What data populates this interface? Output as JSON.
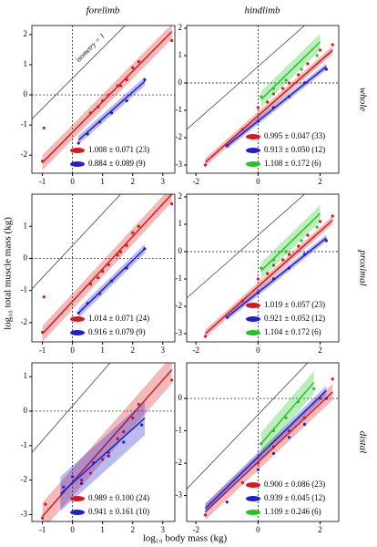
{
  "column_titles": [
    "forelimb",
    "hindlimb"
  ],
  "row_titles": [
    "whole",
    "proximal",
    "distal"
  ],
  "x_label": "log₁₀ body mass (kg)",
  "y_label": "log₁₀ total muscle mass (kg)",
  "isometry_label": "isometry = 1",
  "chart_data": [
    {
      "type": "scatter",
      "xlim": [
        -1.35,
        3.4
      ],
      "ylim": [
        -2.6,
        2.3
      ],
      "xticks": [
        -1,
        0,
        1,
        2,
        3
      ],
      "yticks": [
        -2,
        -1,
        0,
        1,
        2
      ],
      "isometry": {
        "x": [
          -1.35,
          1.75
        ],
        "y": [
          -0.8,
          2.3
        ]
      },
      "series": [
        {
          "name": "1.008 ± 0.071 (23)",
          "color": "#d7191c",
          "x": [
            -1,
            -0.95,
            0.6,
            0.85,
            1.0,
            1.2,
            1.5,
            1.6,
            1.8,
            2.0,
            2.2,
            3.3
          ],
          "values": [
            -2.2,
            -1.1,
            -0.6,
            -0.4,
            -0.2,
            0.0,
            0.3,
            0.3,
            0.5,
            0.9,
            1.1,
            1.8
          ],
          "fit_x": [
            -1,
            3.3
          ],
          "fit_y": [
            -2.25,
            2.1
          ],
          "ci": 0.25
        },
        {
          "name": "0.884 ± 0.089 (9)",
          "color": "#1f1fd0",
          "x": [
            0.2,
            0.5,
            0.9,
            1.3,
            1.8,
            2.4
          ],
          "values": [
            -1.6,
            -1.3,
            -0.9,
            -0.6,
            -0.2,
            0.5
          ],
          "fit_x": [
            0.2,
            2.4
          ],
          "fit_y": [
            -1.5,
            0.45
          ],
          "ci": 0.15
        }
      ]
    },
    {
      "type": "scatter",
      "xlim": [
        -2.3,
        2.6
      ],
      "ylim": [
        -3.3,
        2.1
      ],
      "xticks": [
        -2,
        0,
        2
      ],
      "yticks": [
        -3,
        -2,
        -1,
        0,
        1,
        2
      ],
      "isometry": {
        "x": [
          -2.3,
          1.5
        ],
        "y": [
          -1.7,
          2.1
        ]
      },
      "series": [
        {
          "name": "0.995 ± 0.047 (33)",
          "color": "#d7191c",
          "x": [
            -1.7,
            -0.5,
            0,
            0.3,
            0.5,
            0.8,
            1.0,
            1.3,
            1.6,
            2.0,
            2.4
          ],
          "values": [
            -3.0,
            -1.7,
            -0.9,
            -0.7,
            -0.4,
            -0.2,
            0.0,
            0.3,
            0.7,
            1.2,
            1.4
          ],
          "fit_x": [
            -1.7,
            2.4
          ],
          "fit_y": [
            -2.9,
            1.2
          ],
          "ci": 0.15
        },
        {
          "name": "0.913 ± 0.050 (12)",
          "color": "#1f1fd0",
          "x": [
            -1,
            0,
            0.5,
            1.0,
            1.5,
            2.2
          ],
          "values": [
            -2.3,
            -1.4,
            -0.9,
            -0.5,
            0,
            0.5
          ],
          "fit_x": [
            -1,
            2.2
          ],
          "fit_y": [
            -2.3,
            0.6
          ],
          "ci": 0.12
        },
        {
          "name": "1.108 ± 0.172 (6)",
          "color": "#22c422",
          "x": [
            0.1,
            0.5,
            0.9,
            1.4,
            1.9
          ],
          "values": [
            -0.5,
            -0.2,
            0.1,
            0.5,
            1.0
          ],
          "fit_x": [
            0.1,
            2
          ],
          "fit_y": [
            -0.6,
            1.5
          ],
          "ci": 0.3
        }
      ]
    },
    {
      "type": "scatter",
      "xlim": [
        -1.35,
        3.4
      ],
      "ylim": [
        -2.6,
        2.0
      ],
      "xticks": [
        -1,
        0,
        1,
        2,
        3
      ],
      "yticks": [
        -2,
        -1,
        0,
        1
      ],
      "isometry": {
        "x": [
          -1.35,
          1.6
        ],
        "y": [
          -0.95,
          2.0
        ]
      },
      "series": [
        {
          "name": "1.014 ± 0.071 (24)",
          "color": "#d7191c",
          "x": [
            -1,
            -0.95,
            0.6,
            0.85,
            1.0,
            1.2,
            1.5,
            1.6,
            1.8,
            2.0,
            2.2,
            3.3
          ],
          "values": [
            -2.3,
            -1.2,
            -0.8,
            -0.6,
            -0.4,
            -0.2,
            0.1,
            0.2,
            0.4,
            0.8,
            1.0,
            1.7
          ],
          "fit_x": [
            -1,
            3.3
          ],
          "fit_y": [
            -2.35,
            2.0
          ],
          "ci": 0.25
        },
        {
          "name": "0.916 ± 0.079 (9)",
          "color": "#1f1fd0",
          "x": [
            0.2,
            0.5,
            0.9,
            1.3,
            1.8,
            2.4
          ],
          "values": [
            -1.7,
            -1.4,
            -1.1,
            -0.7,
            -0.3,
            0.3
          ],
          "fit_x": [
            0.2,
            2.4
          ],
          "fit_y": [
            -1.7,
            0.3
          ],
          "ci": 0.15
        }
      ]
    },
    {
      "type": "scatter",
      "xlim": [
        -2.3,
        2.6
      ],
      "ylim": [
        -3.3,
        2.1
      ],
      "xticks": [
        -2,
        0,
        2
      ],
      "yticks": [
        -3,
        -2,
        -1,
        0,
        1,
        2
      ],
      "isometry": {
        "x": [
          -2.3,
          1.5
        ],
        "y": [
          -1.7,
          2.1
        ]
      },
      "series": [
        {
          "name": "1.019 ± 0.057 (23)",
          "color": "#d7191c",
          "x": [
            -1.7,
            -0.5,
            0,
            0.3,
            0.5,
            0.8,
            1.0,
            1.3,
            1.6,
            2.0,
            2.4
          ],
          "values": [
            -3.1,
            -1.8,
            -1.0,
            -0.8,
            -0.5,
            -0.3,
            -0.1,
            0.2,
            0.6,
            1.1,
            1.3
          ],
          "fit_x": [
            -1.7,
            2.4
          ],
          "fit_y": [
            -3.0,
            1.15
          ],
          "ci": 0.15
        },
        {
          "name": "0.921 ± 0.052 (12)",
          "color": "#1f1fd0",
          "x": [
            -1,
            0,
            0.5,
            1.0,
            1.5,
            2.2
          ],
          "values": [
            -2.4,
            -1.5,
            -1.0,
            -0.6,
            -0.1,
            0.4
          ],
          "fit_x": [
            -1,
            2.2
          ],
          "fit_y": [
            -2.4,
            0.5
          ],
          "ci": 0.12
        },
        {
          "name": "1.104 ± 0.172 (6)",
          "color": "#22c422",
          "x": [
            0.1,
            0.5,
            0.9,
            1.4,
            1.9
          ],
          "values": [
            -0.6,
            -0.3,
            0.0,
            0.4,
            0.9
          ],
          "fit_x": [
            0.1,
            2
          ],
          "fit_y": [
            -0.7,
            1.4
          ],
          "ci": 0.3
        }
      ]
    },
    {
      "type": "scatter",
      "xlim": [
        -1.35,
        3.4
      ],
      "ylim": [
        -3.2,
        1.4
      ],
      "xticks": [
        -1,
        0,
        1,
        2,
        3
      ],
      "yticks": [
        -3,
        -2,
        -1,
        0,
        1
      ],
      "isometry": {
        "x": [
          -1.35,
          1.25
        ],
        "y": [
          -1.2,
          1.4
        ]
      },
      "series": [
        {
          "name": "0.989 ± 0.100 (24)",
          "color": "#d7191c",
          "x": [
            -1,
            -0.9,
            0.3,
            0.6,
            1.0,
            1.2,
            1.5,
            1.7,
            2.0,
            2.2,
            3.3
          ],
          "values": [
            -3.1,
            -2.7,
            -2.0,
            -1.8,
            -1.4,
            -1.2,
            -0.8,
            -0.6,
            -0.2,
            0.2,
            0.9
          ],
          "fit_x": [
            -1,
            3.3
          ],
          "fit_y": [
            -3.05,
            1.2
          ],
          "ci": 0.4
        },
        {
          "name": "0.941 ± 0.161 (10)",
          "color": "#1f1fd0",
          "x": [
            -0.3,
            0,
            0.3,
            0.7,
            1.2,
            1.7,
            2.3
          ],
          "values": [
            -2.2,
            -1.9,
            -2.1,
            -1.5,
            -1.3,
            -0.9,
            -0.4
          ],
          "fit_x": [
            -0.4,
            2.4
          ],
          "fit_y": [
            -2.4,
            -0.2
          ],
          "ci": 0.5
        }
      ]
    },
    {
      "type": "scatter",
      "xlim": [
        -2.3,
        2.6
      ],
      "ylim": [
        -3.8,
        1.1
      ],
      "xticks": [
        -2,
        0,
        2
      ],
      "yticks": [
        -3,
        -2,
        -1,
        0
      ],
      "isometry": {
        "x": [
          -2.3,
          1.6
        ],
        "y": [
          -2.8,
          1.1
        ]
      },
      "series": [
        {
          "name": "0.900 ± 0.086 (23)",
          "color": "#d7191c",
          "x": [
            -1.7,
            -0.5,
            0,
            0.5,
            1.0,
            1.5,
            2.0,
            2.4
          ],
          "values": [
            -3.6,
            -2.6,
            -2.0,
            -1.5,
            -1.0,
            -0.6,
            0.0,
            0.6
          ],
          "fit_x": [
            -1.7,
            2.4
          ],
          "fit_y": [
            -3.5,
            0.2
          ],
          "ci": 0.25
        },
        {
          "name": "0.939 ± 0.045 (12)",
          "color": "#1f1fd0",
          "x": [
            -1,
            0,
            0.5,
            1,
            1.5,
            2.2
          ],
          "values": [
            -3.2,
            -2.2,
            -1.7,
            -1.2,
            -0.8,
            0.0
          ],
          "fit_x": [
            -1.7,
            2.2
          ],
          "fit_y": [
            -3.4,
            0.25
          ],
          "ci": 0.15
        },
        {
          "name": "1.109 ± 0.246 (6)",
          "color": "#22c422",
          "x": [
            0.1,
            0.5,
            0.9,
            1.3,
            1.8
          ],
          "values": [
            -1.4,
            -1.0,
            -0.6,
            -0.1,
            0.3
          ],
          "fit_x": [
            0.1,
            1.8
          ],
          "fit_y": [
            -1.4,
            0.5
          ],
          "ci": 0.35
        }
      ]
    }
  ]
}
